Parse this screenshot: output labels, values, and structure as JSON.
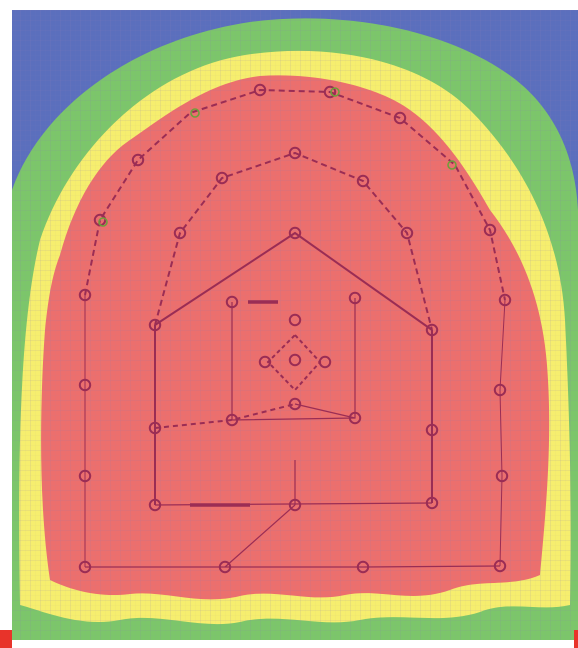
{
  "diagram": {
    "zones": [
      {
        "name": "outer-zone",
        "color": "#5b6fbd"
      },
      {
        "name": "green-zone",
        "color": "#7cc66a"
      },
      {
        "name": "yellow-zone",
        "color": "#f6ee6e"
      },
      {
        "name": "red-zone",
        "color": "#ec6f6d"
      }
    ],
    "point_color": "#9a2d55",
    "grid_color": "#8a7fb0",
    "corner_marker_color": "#e8332a",
    "point_count": 38
  }
}
